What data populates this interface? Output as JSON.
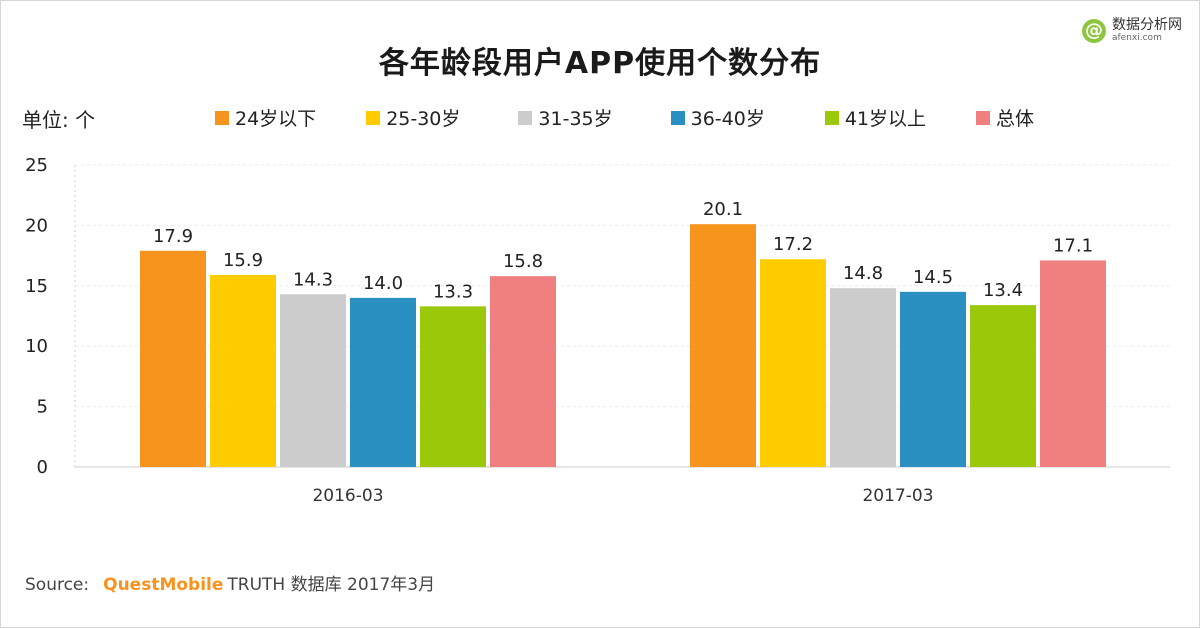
{
  "logo": {
    "mark": "@",
    "name": "数据分析网",
    "site": "afenxi.com"
  },
  "unit_label": "单位: 个",
  "source": {
    "prefix": "Source:",
    "brand": "QuestMobile",
    "suffix": "TRUTH 数据库 2017年3月"
  },
  "chart_data": {
    "type": "bar",
    "title": "各年龄段用户APP使用个数分布",
    "categories": [
      "2016-03",
      "2017-03"
    ],
    "series": [
      {
        "name": "24岁以下",
        "color": "#f7941d",
        "values": [
          17.9,
          20.1
        ]
      },
      {
        "name": "25-30岁",
        "color": "#ffcc00",
        "values": [
          15.9,
          17.2
        ]
      },
      {
        "name": "31-35岁",
        "color": "#cccccc",
        "values": [
          14.3,
          14.8
        ]
      },
      {
        "name": "36-40岁",
        "color": "#2a8fc1",
        "values": [
          14.0,
          14.5
        ]
      },
      {
        "name": "41岁以上",
        "color": "#9cc80a",
        "values": [
          13.3,
          13.4
        ]
      },
      {
        "name": "总体",
        "color": "#f08080",
        "values": [
          15.8,
          17.1
        ]
      }
    ],
    "ylim": [
      0,
      25
    ],
    "yticks": [
      0,
      5,
      10,
      15,
      20,
      25
    ],
    "xlabel": "",
    "ylabel": "",
    "grid": true,
    "legend_position": "top"
  }
}
